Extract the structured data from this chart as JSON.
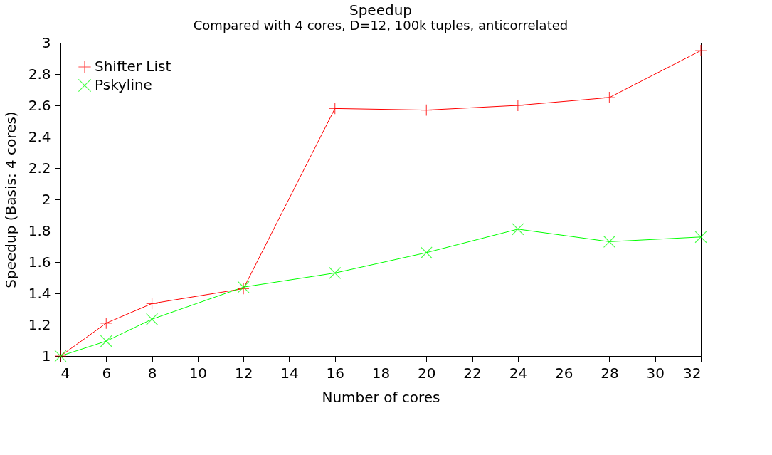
{
  "chart_data": {
    "type": "line",
    "title": "Speedup",
    "subtitle": "Compared with 4 cores, D=12, 100k tuples, anticorrelated",
    "xlabel": "Number of cores",
    "ylabel": "Speedup (Basis: 4 cores)",
    "x": [
      4,
      6,
      8,
      12,
      16,
      20,
      24,
      28,
      32
    ],
    "series": [
      {
        "name": "Shifter List",
        "color": "#ff0000",
        "marker": "cross",
        "values": [
          1,
          1.21,
          1.335,
          1.43,
          2.58,
          2.57,
          2.6,
          2.65,
          2.95
        ]
      },
      {
        "name": "Pskyline",
        "color": "#00ff00",
        "marker": "x",
        "values": [
          1,
          1.095,
          1.235,
          1.44,
          1.53,
          1.66,
          1.81,
          1.73,
          1.76
        ]
      }
    ],
    "xlim": [
      4,
      32
    ],
    "xticks": [
      4,
      6,
      8,
      10,
      12,
      14,
      16,
      18,
      20,
      22,
      24,
      26,
      28,
      30,
      32
    ],
    "ylim": [
      1,
      3
    ],
    "yticks": [
      1,
      1.2,
      1.4,
      1.6,
      1.8,
      2,
      2.2,
      2.4,
      2.6,
      2.8,
      3
    ],
    "grid": false,
    "legend": "top left",
    "line_style": "solid"
  }
}
